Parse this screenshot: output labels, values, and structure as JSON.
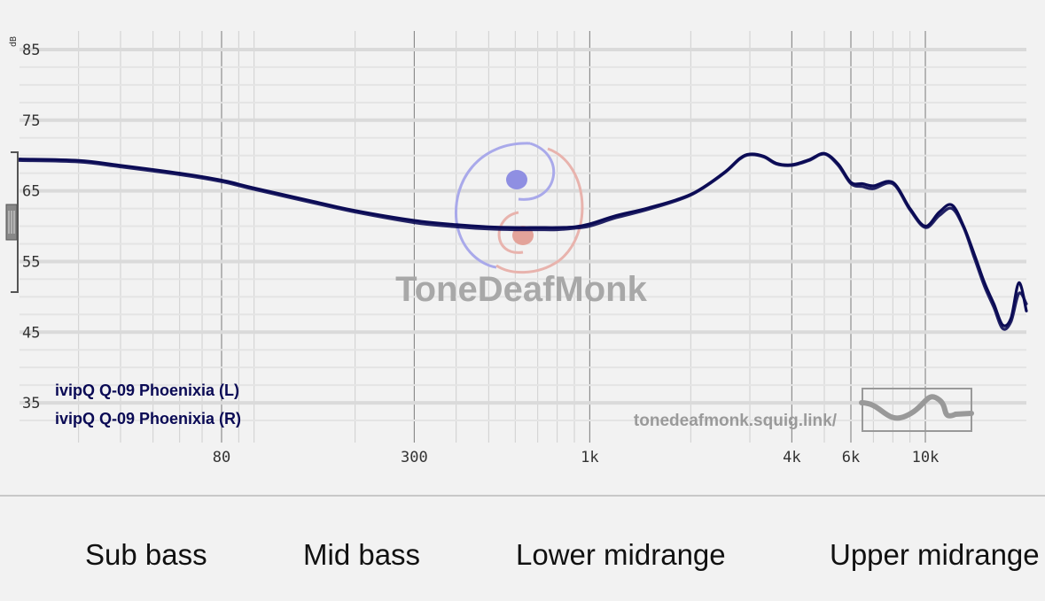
{
  "chart_data": {
    "type": "line",
    "title": "",
    "xlabel": "",
    "ylabel": "dB",
    "x_scale": "log",
    "xlim": [
      20,
      20000
    ],
    "ylim": [
      30,
      87
    ],
    "y_ticks": [
      "85",
      "75",
      "65",
      "55",
      "45",
      "35"
    ],
    "x_ticks": [
      {
        "label": "80",
        "value": 80
      },
      {
        "label": "300",
        "value": 300
      },
      {
        "label": "1k",
        "value": 1000
      },
      {
        "label": "4k",
        "value": 4000
      },
      {
        "label": "6k",
        "value": 6000
      },
      {
        "label": "10k",
        "value": 10000
      }
    ],
    "grid": true,
    "legend_position": "bottom-left",
    "series": [
      {
        "name": "ivipQ Q-09 Phoenixia (L)",
        "color": "#0b0b55",
        "x": [
          20,
          30,
          40,
          60,
          80,
          100,
          150,
          200,
          300,
          400,
          500,
          600,
          700,
          800,
          900,
          1000,
          1200,
          1500,
          2000,
          2500,
          2800,
          3000,
          3300,
          3600,
          4000,
          4500,
          5000,
          5500,
          6000,
          6500,
          7000,
          8000,
          9000,
          10000,
          11000,
          12000,
          13000,
          14000,
          15000,
          16000,
          17000,
          18000,
          19000,
          20000
        ],
        "y": [
          69.5,
          69.3,
          68.6,
          67.5,
          66.5,
          65.4,
          63.5,
          62.2,
          60.8,
          60.2,
          59.9,
          59.8,
          59.8,
          59.8,
          59.9,
          60.3,
          61.5,
          62.6,
          64.5,
          67.5,
          69.6,
          70.2,
          69.9,
          68.9,
          68.7,
          69.4,
          70.3,
          68.8,
          66.2,
          66.0,
          65.7,
          66.2,
          62.5,
          60.0,
          62.0,
          63.0,
          60.0,
          56.0,
          52.0,
          49.0,
          46.0,
          47.0,
          52.0,
          48.0
        ]
      },
      {
        "name": "ivipQ Q-09 Phoenixia (R)",
        "color": "#0b0b55",
        "x": [
          20,
          30,
          40,
          60,
          80,
          100,
          150,
          200,
          300,
          400,
          500,
          600,
          700,
          800,
          900,
          1000,
          1200,
          1500,
          2000,
          2500,
          2800,
          3000,
          3300,
          3600,
          4000,
          4500,
          5000,
          5500,
          6000,
          6500,
          7000,
          8000,
          9000,
          10000,
          11000,
          12000,
          13000,
          14000,
          15000,
          16000,
          17000,
          18000,
          19000,
          20000
        ],
        "y": [
          69.3,
          69.1,
          68.4,
          67.3,
          66.3,
          65.2,
          63.3,
          62.0,
          60.5,
          59.9,
          59.6,
          59.5,
          59.5,
          59.5,
          59.7,
          60.0,
          61.2,
          62.4,
          64.4,
          67.4,
          69.5,
          70.1,
          69.8,
          68.8,
          68.6,
          69.3,
          70.2,
          68.6,
          66.0,
          65.6,
          65.3,
          66.0,
          62.3,
          59.8,
          61.5,
          62.5,
          59.8,
          55.5,
          51.5,
          48.5,
          45.5,
          46.5,
          50.5,
          49.0
        ]
      }
    ]
  },
  "watermark": {
    "brand": "ToneDeafMonk",
    "url": "tonedeafmonk.squig.link/"
  },
  "bands": [
    {
      "label": "Sub bass"
    },
    {
      "label": "Mid bass"
    },
    {
      "label": "Lower midrange"
    },
    {
      "label": "Upper midrange"
    }
  ]
}
